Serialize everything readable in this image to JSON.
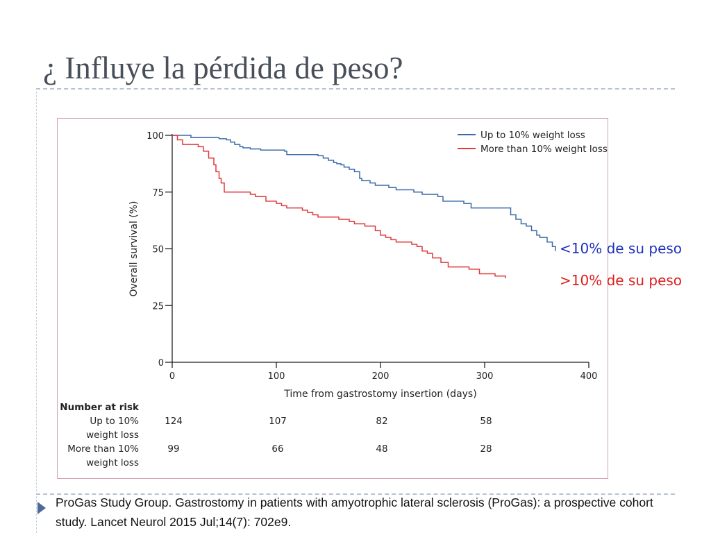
{
  "slide": {
    "title": "¿ Influye la pérdida de peso?",
    "reference": "ProGas Study Group. Gastrostomy in patients with amyotrophic lateral sclerosis (ProGas): a prospective cohort study. Lancet Neurol 2015 Jul;14(7): 702e9."
  },
  "colors": {
    "title": "#474f5a",
    "rule": "#b7c2d4",
    "frame": "#d6a1ad",
    "bullet": "#4d6b9a",
    "series_up_to_10": "#3a6aa8",
    "series_more_than_10": "#e0393b",
    "annotation_blue": "#1f2fbf",
    "annotation_red": "#e01b1b"
  },
  "chart_data": {
    "type": "line",
    "step": true,
    "xlabel": "Time from gastrostomy insertion (days)",
    "ylabel": "Overall survival (%)",
    "xlim": [
      0,
      400
    ],
    "ylim": [
      0,
      100
    ],
    "xticks": [
      0,
      100,
      200,
      300,
      400
    ],
    "yticks": [
      0,
      25,
      50,
      75,
      100
    ],
    "grid": false,
    "legend_position": "top-right",
    "series": [
      {
        "name": "Up to 10% weight loss",
        "color": "#3a6aa8",
        "x": [
          0,
          18,
          38,
          45,
          52,
          56,
          60,
          65,
          68,
          75,
          80,
          85,
          100,
          108,
          110,
          138,
          140,
          145,
          150,
          155,
          158,
          162,
          165,
          170,
          175,
          180,
          182,
          190,
          195,
          208,
          215,
          220,
          225,
          232,
          240,
          250,
          255,
          257,
          260,
          275,
          280,
          287,
          300,
          320,
          325,
          330,
          335,
          340,
          345,
          350,
          353,
          360,
          365,
          368
        ],
        "y": [
          100,
          99,
          99,
          98.5,
          98,
          97,
          96,
          95,
          94.5,
          94,
          94,
          93.5,
          93.5,
          93,
          91.5,
          91.5,
          91,
          90,
          89,
          88,
          87.5,
          87,
          86,
          85,
          84,
          81,
          80,
          79,
          78,
          77,
          76,
          76,
          76,
          75,
          74,
          74,
          73,
          73,
          71,
          71,
          70,
          68,
          68,
          68,
          65,
          63,
          61,
          60,
          58,
          56,
          55,
          53,
          51,
          49
        ]
      },
      {
        "name": "More than 10% weight loss",
        "color": "#e0393b",
        "x": [
          0,
          5,
          10,
          25,
          30,
          35,
          40,
          42,
          45,
          47,
          50,
          55,
          75,
          80,
          90,
          100,
          105,
          110,
          125,
          130,
          135,
          140,
          160,
          170,
          175,
          185,
          195,
          200,
          205,
          210,
          215,
          230,
          235,
          240,
          245,
          250,
          258,
          265,
          285,
          295,
          310,
          320
        ],
        "y": [
          100,
          98,
          96,
          95,
          93,
          90,
          87,
          84,
          81,
          79,
          75,
          75,
          74,
          73,
          71,
          70,
          69,
          68,
          67,
          66,
          65,
          64,
          63,
          62,
          61,
          60,
          58,
          56,
          55,
          54,
          53,
          52,
          51,
          49,
          48,
          46,
          44,
          42,
          41,
          39,
          38,
          37
        ]
      }
    ],
    "annotations": [
      {
        "text": "<10% de su peso",
        "color": "#1f2fbf"
      },
      {
        "text": ">10% de su peso",
        "color": "#e01b1b"
      }
    ],
    "risk_table": {
      "title": "Number at risk",
      "rows": [
        {
          "label_line1": "Up to 10%",
          "label_line2": "weight loss",
          "counts": [
            124,
            107,
            82,
            58
          ]
        },
        {
          "label_line1": "More than 10%",
          "label_line2": "weight loss",
          "counts": [
            99,
            66,
            48,
            28
          ]
        }
      ],
      "at_days": [
        0,
        100,
        200,
        300
      ]
    }
  }
}
